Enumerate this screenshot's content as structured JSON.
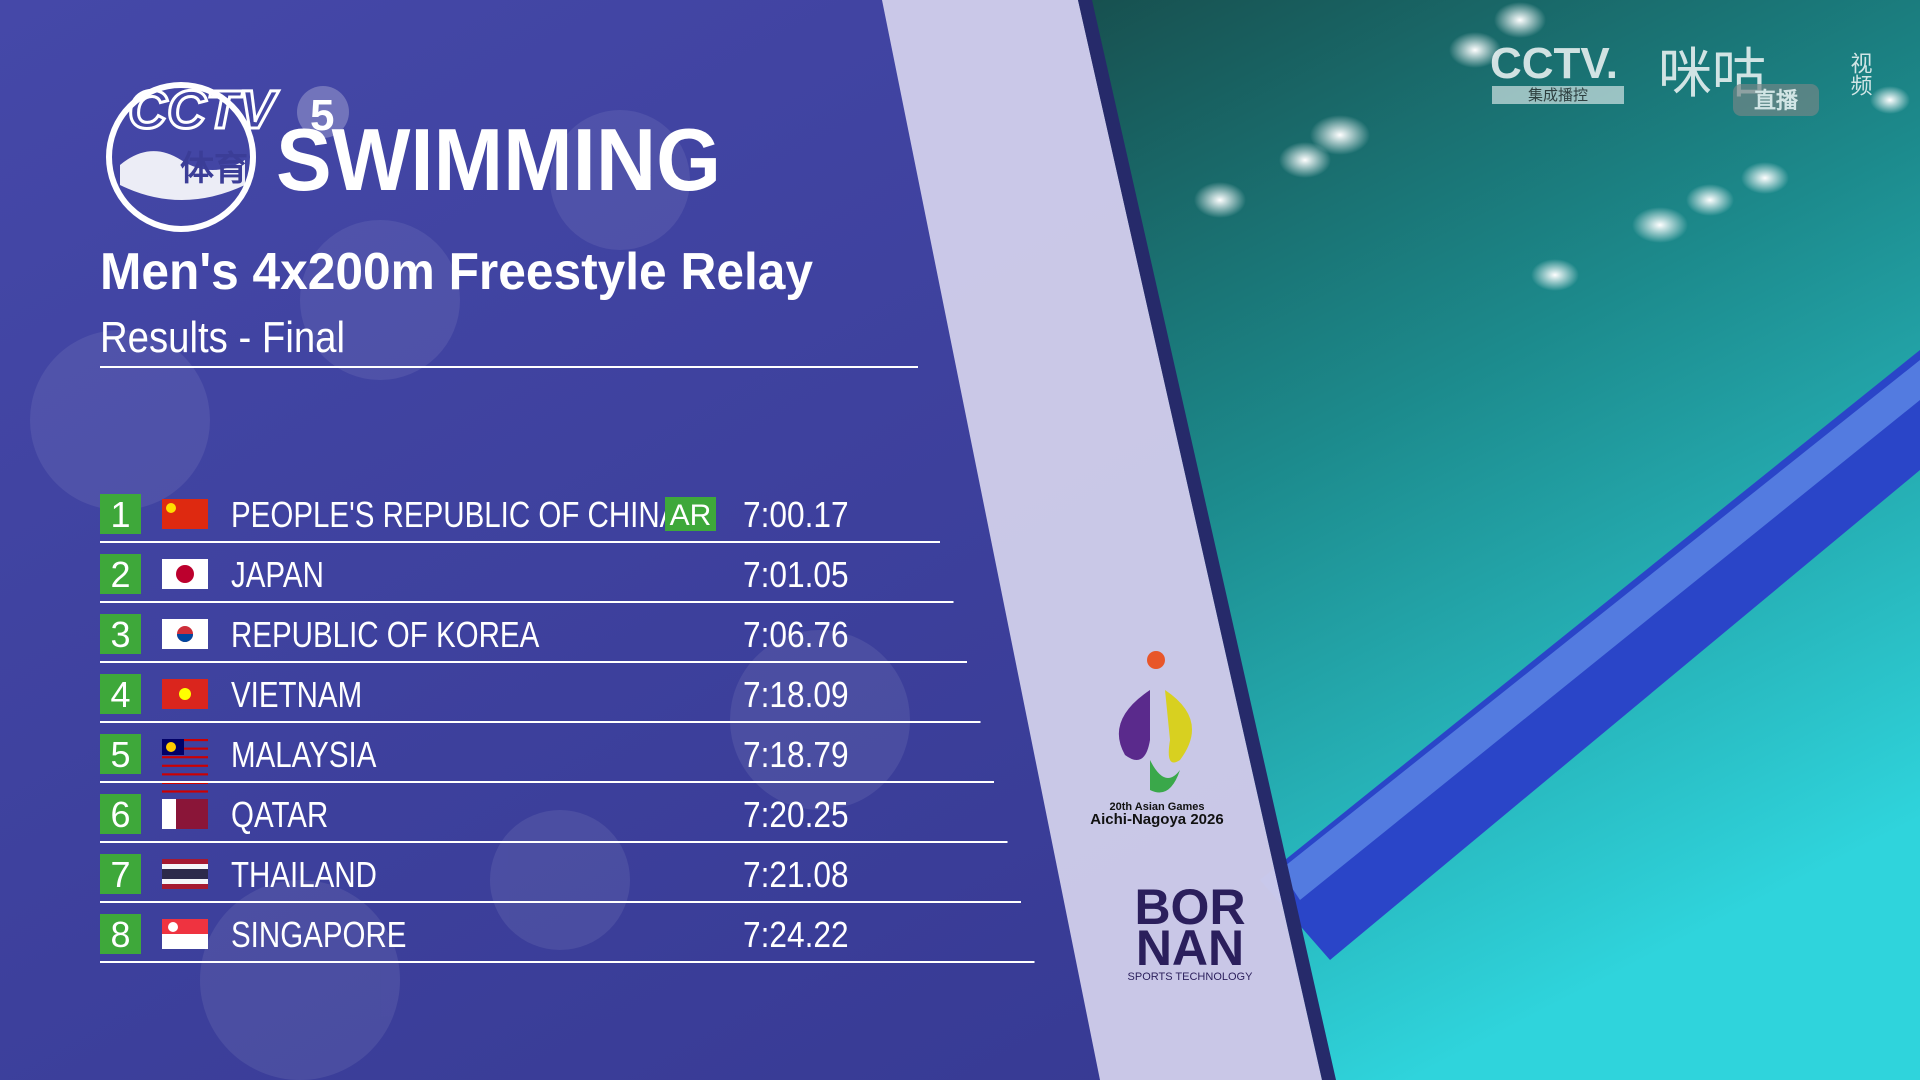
{
  "header": {
    "channel": "CCTV",
    "channel_number": "5",
    "channel_sub": "体育",
    "sport": "SWIMMING",
    "event": "Men's 4x200m Freestyle Relay",
    "stage": "Results - Final"
  },
  "table": {
    "rows": [
      {
        "rank": 1,
        "country": "PEOPLE'S REPUBLIC OF CHINA",
        "record": "AR",
        "time": "7:00.17"
      },
      {
        "rank": 2,
        "country": "JAPAN",
        "time": "7:01.05"
      },
      {
        "rank": 3,
        "country": "REPUBLIC OF KOREA",
        "time": "7:06.76"
      },
      {
        "rank": 4,
        "country": "VIETNAM",
        "time": "7:18.09"
      },
      {
        "rank": 5,
        "country": "MALAYSIA",
        "time": "7:18.79"
      },
      {
        "rank": 6,
        "country": "QATAR",
        "time": "7:20.25"
      },
      {
        "rank": 7,
        "country": "THAILAND",
        "time": "7:21.08"
      },
      {
        "rank": 8,
        "country": "SINGAPORE",
        "time": "7:24.22"
      }
    ]
  },
  "sponsors": {
    "games_line1": "20th Asian Games",
    "games_line2": "Aichi-Nagoya 2026",
    "brand_top": "BOR",
    "brand_bottom": "NAN",
    "brand_sub": "SPORTS TECHNOLOGY"
  },
  "watermark": {
    "cctv": "CCTV.",
    "cctv_sub": "集成播控",
    "migu": "咪咕",
    "migu_sub": "视频",
    "live": "直播"
  }
}
